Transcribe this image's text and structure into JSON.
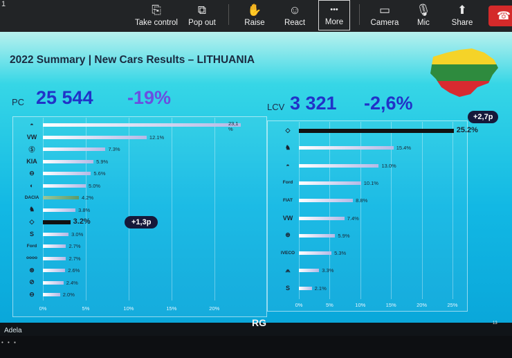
{
  "toolbar": {
    "corner_text": "1",
    "buttons": [
      {
        "label": "Take control",
        "icon": "take-control-icon",
        "glyph": "⎘"
      },
      {
        "label": "Pop out",
        "icon": "pop-out-icon",
        "glyph": "⧉"
      },
      {
        "label": "Raise",
        "icon": "raise-hand-icon",
        "glyph": "✋"
      },
      {
        "label": "React",
        "icon": "react-icon",
        "glyph": "☺"
      },
      {
        "label": "More",
        "icon": "more-icon",
        "glyph": "•••"
      },
      {
        "label": "Camera",
        "icon": "camera-off-icon",
        "glyph": "▭"
      },
      {
        "label": "Mic",
        "icon": "mic-off-icon",
        "glyph": "🎙"
      },
      {
        "label": "Share",
        "icon": "share-icon",
        "glyph": "⬆"
      }
    ],
    "leave_icon": "phone-hangup-icon"
  },
  "slide": {
    "title": "2022 Summary | New Cars Results – LITHUANIA",
    "flag_colors": [
      "#f5d328",
      "#2e8b3e",
      "#d82a30"
    ],
    "pc": {
      "label": "PC",
      "value": "25 544",
      "change": "-19%",
      "badge": "+1,3p"
    },
    "lcv": {
      "label": "LCV",
      "value": "3 321",
      "change": "-2,6%",
      "badge": "+2,7p"
    }
  },
  "chart_data": [
    {
      "type": "bar",
      "orientation": "horizontal",
      "name": "PC",
      "categories": [
        "Toyota",
        "Volkswagen",
        "Skoda",
        "Kia",
        "Nissan",
        "BMW",
        "Dacia",
        "Peugeot",
        "Renault",
        "Seat",
        "Ford",
        "Audi",
        "Mercedes-Benz",
        "Opel",
        "Volvo"
      ],
      "values": [
        23.1,
        12.1,
        7.3,
        5.9,
        5.6,
        5.0,
        4.2,
        3.8,
        3.2,
        3.0,
        2.7,
        2.7,
        2.6,
        2.4,
        2.0
      ],
      "labels": [
        "23,1\n%",
        "12.1%",
        "7.3%",
        "5.9%",
        "5.6%",
        "5.0%",
        "4.2%",
        "3.8%",
        "3.2%",
        "3.0%",
        "2.7%",
        "2.7%",
        "2.6%",
        "2.4%",
        "2.0%"
      ],
      "highlight": "Renault",
      "ticks": [
        "0%",
        "5%",
        "10%",
        "15%",
        "20%"
      ],
      "xlim": [
        0,
        23
      ],
      "grid": true
    },
    {
      "type": "bar",
      "orientation": "horizontal",
      "name": "LCV",
      "categories": [
        "Renault",
        "Peugeot",
        "Toyota",
        "Ford",
        "Fiat",
        "Volkswagen",
        "Mercedes-Benz",
        "Iveco",
        "Citroen",
        "Suzuki"
      ],
      "values": [
        25.2,
        15.4,
        13.0,
        10.1,
        8.8,
        7.4,
        5.9,
        5.3,
        3.3,
        2.1
      ],
      "labels": [
        "25.2%",
        "15.4%",
        "13.0%",
        "10.1%",
        "8.8%",
        "7.4%",
        "5.9%",
        "5.3%",
        "3.3%",
        "2.1%"
      ],
      "highlight": "Renault",
      "ticks": [
        "0%",
        "5%",
        "10%",
        "15%",
        "20%",
        "25%"
      ],
      "xlim": [
        0,
        25
      ],
      "grid": true
    }
  ],
  "logos": {
    "pc": [
      "◓",
      "VW",
      "Ⓢ",
      "KIA",
      "⊖",
      "◐",
      "DACIA",
      "♞",
      "◇",
      "S",
      "Ford",
      "oooo",
      "⊛",
      "⊘",
      "⊖"
    ],
    "lcv": [
      "◇",
      "♞",
      "◓",
      "Ford",
      "FIAT",
      "VW",
      "⊛",
      "IVECO",
      "⩕",
      "S"
    ]
  },
  "footer": {
    "presenter": "Adela",
    "brand": "RG",
    "page": "13"
  }
}
